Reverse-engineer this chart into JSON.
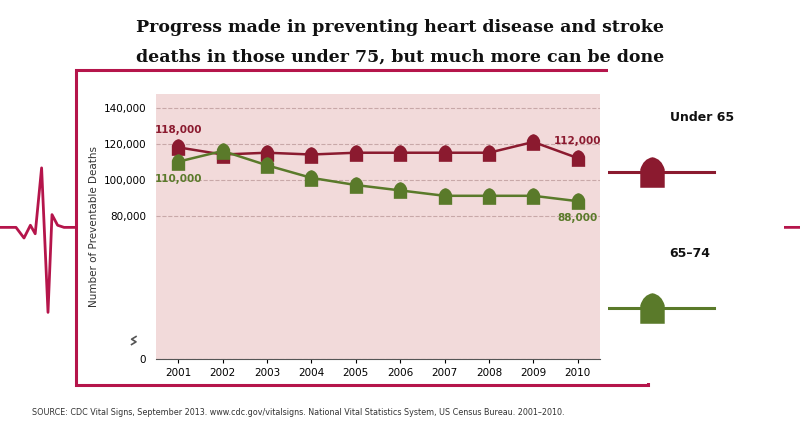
{
  "title_line1": "Progress made in preventing heart disease and stroke",
  "title_line2": "deaths in those under 75, but much more can be done",
  "years": [
    2001,
    2002,
    2003,
    2004,
    2005,
    2006,
    2007,
    2008,
    2009,
    2010
  ],
  "under65": [
    118000,
    114000,
    115000,
    114000,
    115000,
    115000,
    115000,
    115000,
    121000,
    112000
  ],
  "age6574": [
    110000,
    116000,
    108000,
    101000,
    97000,
    94000,
    91000,
    91000,
    91000,
    88000
  ],
  "under65_color": "#8B1A2F",
  "age6574_color": "#5A7A2A",
  "bg_color": "#FFFFFF",
  "border_color": "#B5154B",
  "plot_bg": "#F2DADA",
  "ylabel": "Number of Preventable Deaths",
  "ylim_max": 140000,
  "source_text": "SOURCE: CDC Vital Signs, September 2013. www.cdc.gov/vitalsigns. National Vital Statistics System, US Census Bureau. 2001–2010.",
  "legend_under65": "Under 65",
  "legend_6574": "65–74",
  "gridline_color": "#C8A8A8",
  "heartbeat_color": "#B5154B",
  "yticks": [
    0,
    80000,
    100000,
    120000,
    140000
  ],
  "ytick_labels": [
    "0",
    "80,000",
    "100,000",
    "120,000",
    "140,000"
  ]
}
